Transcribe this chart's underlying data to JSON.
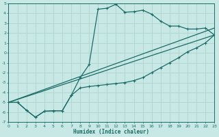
{
  "xlabel": "Humidex (Indice chaleur)",
  "xlim": [
    0,
    23
  ],
  "ylim": [
    -7,
    5
  ],
  "xticks": [
    0,
    1,
    2,
    3,
    4,
    5,
    6,
    7,
    8,
    9,
    10,
    11,
    12,
    13,
    14,
    15,
    16,
    17,
    18,
    19,
    20,
    21,
    22,
    23
  ],
  "yticks": [
    -7,
    -6,
    -5,
    -4,
    -3,
    -2,
    -1,
    0,
    1,
    2,
    3,
    4,
    5
  ],
  "background_color": "#c8e8e6",
  "grid_color": "#b0d8d0",
  "line_color": "#1a6b65",
  "line1_x": [
    0,
    1,
    2,
    3,
    4,
    5,
    6,
    7,
    8,
    9,
    10,
    11,
    12,
    13,
    14,
    15,
    16,
    17,
    18,
    19,
    20,
    21,
    22,
    23
  ],
  "line1_y": [
    -5.0,
    -5.0,
    -5.8,
    -6.5,
    -5.9,
    -5.85,
    -5.85,
    -4.3,
    -2.5,
    -1.2,
    4.4,
    4.5,
    4.9,
    4.1,
    4.15,
    4.3,
    3.9,
    3.2,
    2.7,
    2.7,
    2.4,
    2.4,
    2.5,
    1.8
  ],
  "line2_x": [
    0,
    1,
    2,
    3,
    4,
    5,
    6,
    7,
    8,
    9,
    10,
    11,
    12,
    13,
    14,
    15,
    16,
    17,
    18,
    19,
    20,
    21,
    22,
    23
  ],
  "line2_y": [
    -5.0,
    -5.0,
    -5.8,
    -6.5,
    -5.9,
    -5.85,
    -5.85,
    -4.3,
    -3.55,
    -3.4,
    -3.3,
    -3.2,
    -3.1,
    -3.0,
    -2.8,
    -2.5,
    -2.0,
    -1.5,
    -1.0,
    -0.5,
    0.1,
    0.5,
    1.0,
    1.8
  ],
  "line3_x": [
    0,
    23
  ],
  "line3_y": [
    -5.0,
    1.8
  ],
  "line4_x": [
    0,
    23
  ],
  "line4_y": [
    -5.0,
    2.5
  ]
}
